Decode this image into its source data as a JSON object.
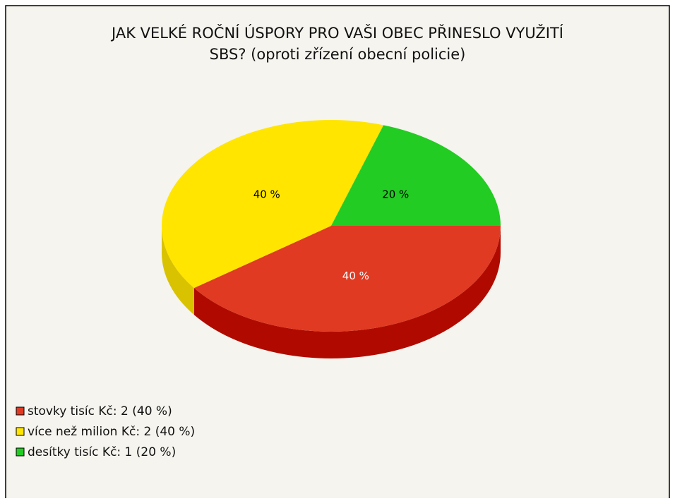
{
  "chart_data": {
    "type": "pie",
    "title": [
      "JAK VELKÉ ROČNÍ ÚSPORY PRO VAŠI OBEC PŘINESLO VYUŽITÍ",
      "SBS? (oproti zřízení obecní policie)"
    ],
    "categories": [
      "stovky tisíc Kč: 2 (40 %)",
      "více než milion Kč: 2 (40 %)",
      "desítky tisíc Kč: 1 (20 %)"
    ],
    "values": [
      40,
      40,
      20
    ],
    "value_labels": [
      "40 %",
      "40 %",
      "20 %"
    ],
    "colors": [
      "#e03a22",
      "#ffe500",
      "#22cc22"
    ],
    "side_colors": [
      "#b00a00",
      "#d9c200",
      "#119911"
    ],
    "label_colors": [
      "#ffffff",
      "#000000",
      "#000000"
    ],
    "legend": "bottom-left"
  }
}
